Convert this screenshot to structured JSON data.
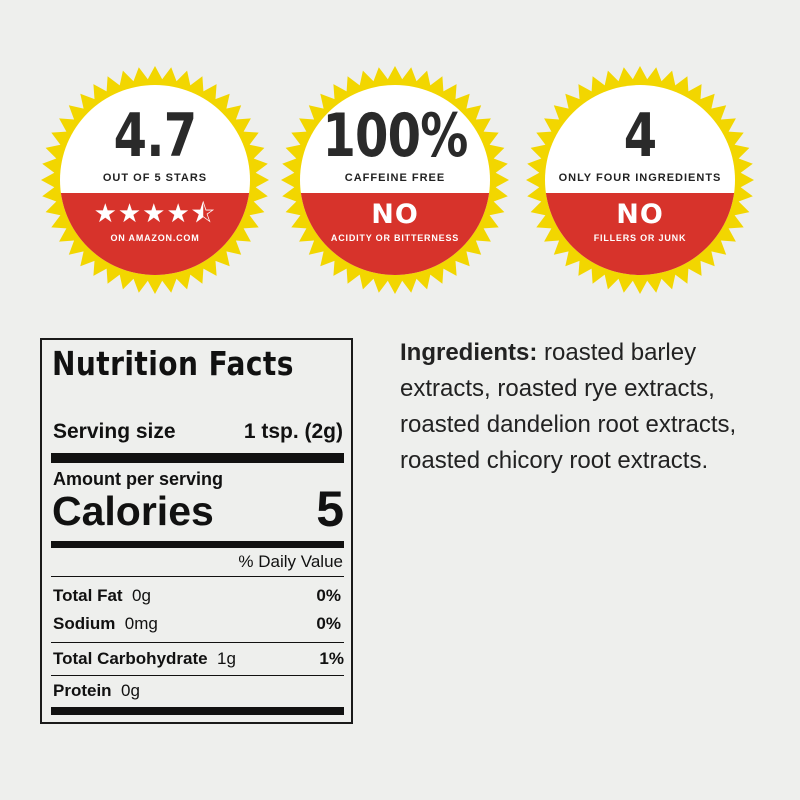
{
  "colors": {
    "burst": "#f2d600",
    "red": "#d7332b",
    "white": "#ffffff",
    "background": "#eeefed"
  },
  "badges": [
    {
      "big": "4.7",
      "subtitle": "OUT OF 5 STARS",
      "stars": "★★★★⯪",
      "rating": 4.7,
      "red_subtitle": "ON AMAZON.COM"
    },
    {
      "big": "100%",
      "subtitle": "CAFFEINE FREE",
      "no": "NO",
      "red_subtitle": "ACIDITY OR BITTERNESS"
    },
    {
      "big": "4",
      "subtitle": "ONLY FOUR INGREDIENTS",
      "no": "NO",
      "red_subtitle": "FILLERS OR JUNK"
    }
  ],
  "nutrition": {
    "title": "Nutrition Facts",
    "serving_label": "Serving size",
    "serving_value": "1 tsp. (2g)",
    "amount_label": "Amount per serving",
    "calories_label": "Calories",
    "calories_value": "5",
    "daily_value_label": "% Daily Value",
    "rows": [
      {
        "name": "Total Fat",
        "amount": "0g",
        "dv": "0%"
      },
      {
        "name": "Sodium",
        "amount": "0mg",
        "dv": "0%"
      },
      {
        "name": "Total Carbohydrate",
        "amount": "1g",
        "dv": "1%"
      },
      {
        "name": "Protein",
        "amount": "0g",
        "dv": ""
      }
    ]
  },
  "ingredients": {
    "label": "Ingredients:",
    "text": " roasted barley extracts, roasted rye extracts, roasted dandelion root extracts, roasted chicory root extracts."
  }
}
